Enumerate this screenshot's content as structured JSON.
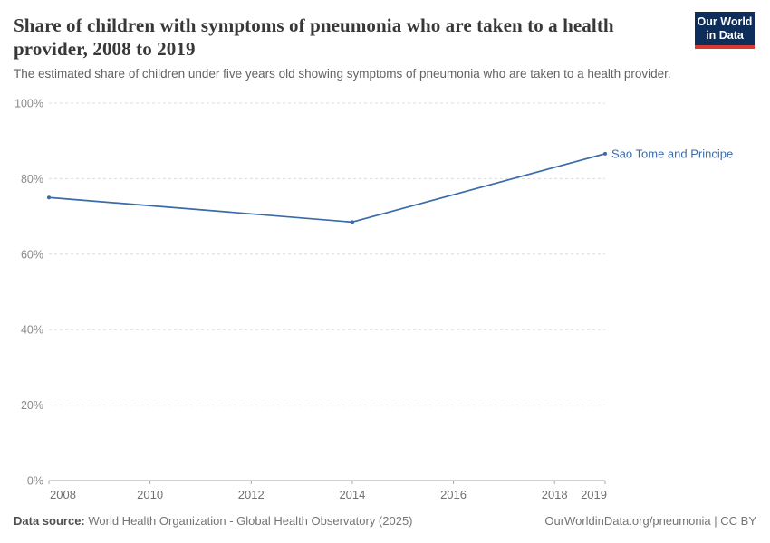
{
  "header": {
    "title": "Share of children with symptoms of pneumonia who are taken to a health provider, 2008 to 2019",
    "subtitle": "The estimated share of children under five years old showing symptoms of pneumonia who are taken to a health provider.",
    "logo": {
      "line1": "Our World",
      "line2": "in Data"
    }
  },
  "chart_data": {
    "type": "line",
    "title": "Share of children with symptoms of pneumonia who are taken to a health provider, 2008 to 2019",
    "xlabel": "",
    "ylabel": "",
    "xlim": [
      2008,
      2019
    ],
    "ylim": [
      0,
      100
    ],
    "x_ticks": [
      2008,
      2010,
      2012,
      2014,
      2016,
      2018,
      2019
    ],
    "y_ticks": [
      0,
      20,
      40,
      60,
      80,
      100
    ],
    "y_tick_suffix": "%",
    "grid": "horizontal-dashed",
    "legend_position": "end-of-line-label",
    "series": [
      {
        "name": "Sao Tome and Principe",
        "color": "#3a6aa8",
        "x": [
          2008,
          2014,
          2019
        ],
        "y": [
          75,
          68.5,
          86.6
        ]
      }
    ]
  },
  "footer": {
    "datasource_label": "Data source:",
    "datasource_text": " World Health Organization - Global Health Observatory (2025)",
    "credit": "OurWorldinData.org/pneumonia | CC BY"
  },
  "colors": {
    "line": "#3a6aa8",
    "logo_bg": "#0d2e5b",
    "logo_stripe": "#d93a2d",
    "grid": "#dcdcdc",
    "axis": "#a9a9a9",
    "y_tick_label": "#8a8a8a",
    "x_tick_label": "#707070",
    "title": "#383838",
    "subtitle": "#636363",
    "footer": "#757575"
  }
}
